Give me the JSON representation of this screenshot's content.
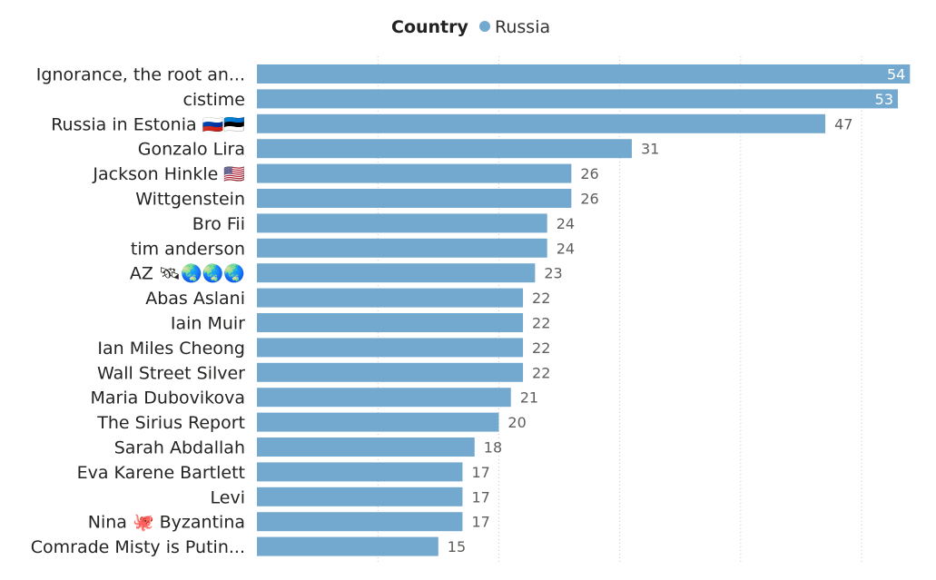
{
  "legend": {
    "title": "Country",
    "items": [
      {
        "label": "Russia",
        "color": "#74a9cf"
      }
    ]
  },
  "chart_data": {
    "type": "bar",
    "orientation": "horizontal",
    "categories": [
      "Ignorance, the root an...",
      "cistime",
      "Russia in Estonia 🇷🇺🇪🇪",
      "Gonzalo Lira",
      "Jackson Hinkle 🇺🇸",
      "Wittgenstein",
      "Bro Fii",
      "tim anderson",
      "AZ 🛰🌏🌏🌏",
      "Abas Aslani",
      "Iain Muir",
      "Ian Miles Cheong",
      "Wall Street Silver",
      "Maria Dubovikova",
      "The Sirius Report",
      "Sarah Abdallah",
      "Eva Karene Bartlett",
      "Levi",
      "Nina 🐙 Byzantina",
      "Comrade Misty is Putin..."
    ],
    "series": [
      {
        "name": "Russia",
        "color": "#74a9cf",
        "values": [
          54,
          53,
          47,
          31,
          26,
          26,
          24,
          24,
          23,
          22,
          22,
          22,
          22,
          21,
          20,
          18,
          17,
          17,
          17,
          15
        ]
      }
    ],
    "xlim": [
      0,
      55
    ],
    "grid": true,
    "legend_position": "top-center",
    "data_labels": true
  }
}
